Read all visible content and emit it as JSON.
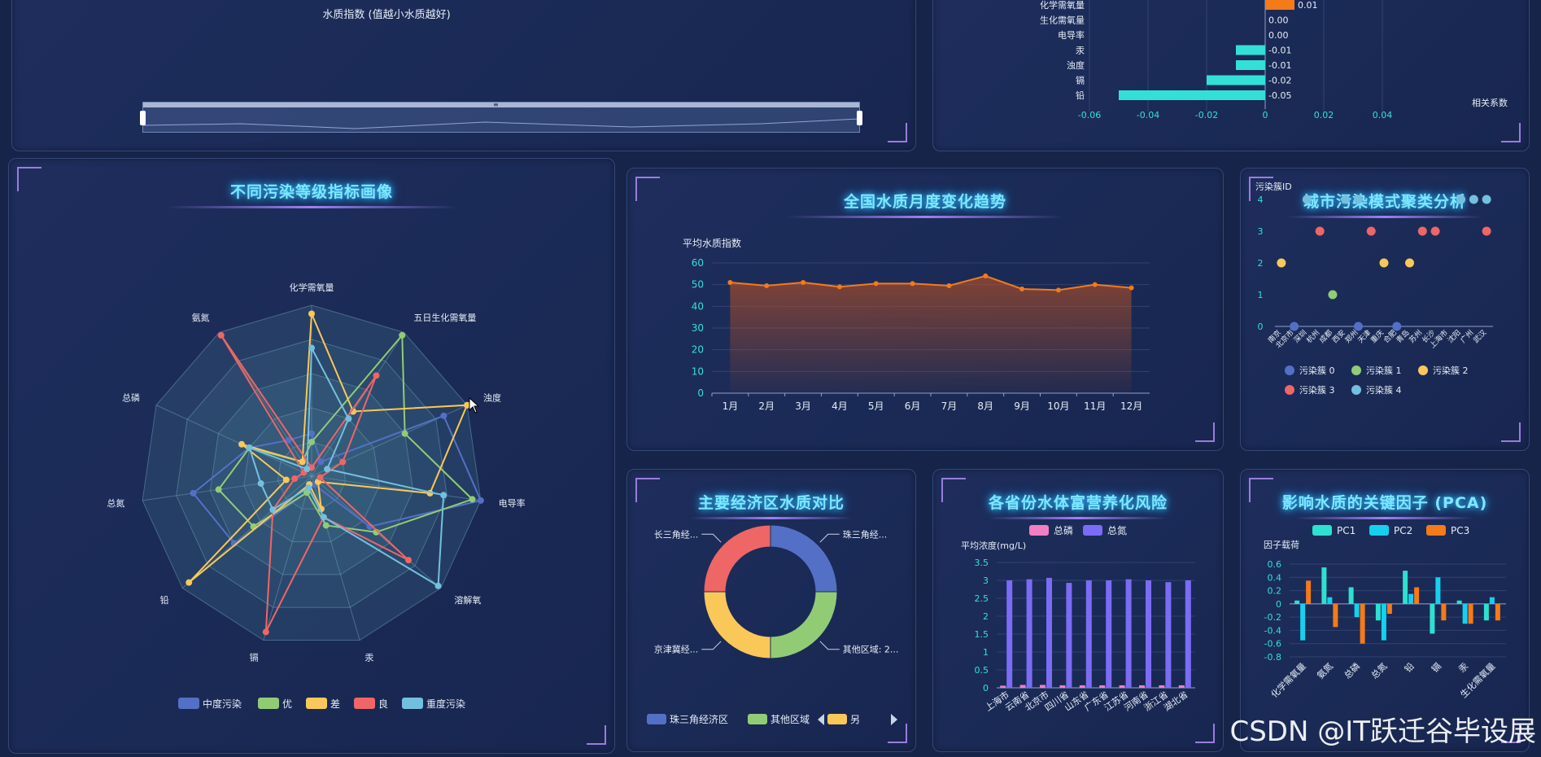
{
  "colors": {
    "accent": "#7fe6ff",
    "corner": "#9a7ddc",
    "teal": "#32e0d8",
    "orange": "#f47a1a"
  },
  "watermark": "CSDN @IT跃迁谷毕设展",
  "top_left": {
    "subtitle": "水质指数 (值越小水质越好)",
    "slider_handle_label": "≡"
  },
  "chart_data": [
    {
      "id": "correlation",
      "type": "bar",
      "orientation": "horizontal",
      "categories": [
        "化学需氧量",
        "生化需氧量",
        "电导率",
        "汞",
        "浊度",
        "镉",
        "铅"
      ],
      "values": [
        0.01,
        0.0,
        0.0,
        -0.01,
        -0.01,
        -0.02,
        -0.05
      ],
      "value_labels": [
        "0.01",
        "0.00",
        "0.00",
        "-0.01",
        "-0.01",
        "-0.02",
        "-0.05"
      ],
      "xlabel": "相关系数",
      "xlim": [
        -0.06,
        0.04
      ],
      "xticks": [
        "-0.06",
        "-0.04",
        "-0.02",
        "0",
        "0.02",
        "0.04"
      ]
    },
    {
      "id": "radar",
      "type": "radar",
      "title": "不同污染等级指标画像",
      "indicators": [
        "化学需氧量",
        "五日生化需氧量",
        "浊度",
        "电导率",
        "溶解氧",
        "汞",
        "镉",
        "铅",
        "总氮",
        "总磷",
        "氨氮"
      ],
      "series": [
        {
          "name": "中度污染",
          "color": "#5470c6",
          "values": [
            0.25,
            0.1,
            0.85,
            1.0,
            0.45,
            0.05,
            0.1,
            0.6,
            0.7,
            0.4,
            0.25
          ]
        },
        {
          "name": "优",
          "color": "#91cc75",
          "values": [
            0.2,
            0.98,
            0.6,
            0.95,
            0.5,
            0.3,
            0.1,
            0.45,
            0.55,
            0.4,
            0.1
          ]
        },
        {
          "name": "差",
          "color": "#fac858",
          "values": [
            0.95,
            0.45,
            1.0,
            0.7,
            0.05,
            0.2,
            0.05,
            0.95,
            0.15,
            0.45,
            0.1
          ]
        },
        {
          "name": "良",
          "color": "#ee6666",
          "values": [
            0.05,
            0.7,
            0.2,
            0.05,
            0.75,
            0.25,
            0.95,
            0.3,
            0.1,
            0.05,
            0.98
          ]
        },
        {
          "name": "重度污染",
          "color": "#73c0de",
          "values": [
            0.75,
            0.4,
            0.1,
            0.78,
            0.98,
            0.25,
            0.07,
            0.3,
            0.3,
            0.4,
            0.05
          ]
        }
      ]
    },
    {
      "id": "monthly",
      "type": "area",
      "title": "全国水质月度变化趋势",
      "ylabel": "平均水质指数",
      "categories": [
        "1月",
        "2月",
        "3月",
        "4月",
        "5月",
        "6月",
        "7月",
        "8月",
        "9月",
        "10月",
        "11月",
        "12月"
      ],
      "values": [
        51,
        49.5,
        51,
        49,
        50.5,
        50.5,
        49.5,
        54,
        48,
        47.5,
        50,
        48.5
      ],
      "ylim": [
        0,
        60
      ],
      "yticks": [
        "0",
        "10",
        "20",
        "30",
        "40",
        "50",
        "60"
      ]
    },
    {
      "id": "cluster",
      "type": "scatter",
      "title": "城市污染模式聚类分析",
      "ylabel": "污染簇ID",
      "yticks": [
        "0",
        "1",
        "2",
        "3",
        "4"
      ],
      "categories": [
        "南京",
        "北京市",
        "深圳",
        "杭州",
        "成都",
        "西安",
        "郑州",
        "天津",
        "重庆",
        "合肥",
        "青岛",
        "苏州",
        "长沙",
        "上海市",
        "沈阳",
        "广州",
        "武汉"
      ],
      "points": [
        {
          "x": 1,
          "y": 0,
          "c": 0
        },
        {
          "x": 2,
          "y": 4,
          "c": 4
        },
        {
          "x": 4,
          "y": 1,
          "c": 1
        },
        {
          "x": 5,
          "y": 4,
          "c": 4
        },
        {
          "x": 6,
          "y": 4,
          "c": 4
        },
        {
          "x": 3,
          "y": 3,
          "c": 3
        },
        {
          "x": 7,
          "y": 3,
          "c": 3
        },
        {
          "x": 0,
          "y": 2,
          "c": 2
        },
        {
          "x": 8,
          "y": 2,
          "c": 2
        },
        {
          "x": 10,
          "y": 2,
          "c": 2
        },
        {
          "x": 6,
          "y": 0,
          "c": 0
        },
        {
          "x": 9,
          "y": 0,
          "c": 0
        },
        {
          "x": 11,
          "y": 3,
          "c": 3
        },
        {
          "x": 12,
          "y": 3,
          "c": 3
        },
        {
          "x": 14,
          "y": 4,
          "c": 4
        },
        {
          "x": 15,
          "y": 4,
          "c": 4
        },
        {
          "x": 16,
          "y": 4,
          "c": 4
        },
        {
          "x": 16,
          "y": 3,
          "c": 3
        }
      ],
      "legend": [
        {
          "name": "污染簇 0",
          "color": "#5470c6"
        },
        {
          "name": "污染簇 1",
          "color": "#91cc75"
        },
        {
          "name": "污染簇 2",
          "color": "#fac858"
        },
        {
          "name": "污染簇 3",
          "color": "#ee6666"
        },
        {
          "name": "污染簇 4",
          "color": "#73c0de"
        }
      ]
    },
    {
      "id": "economic",
      "type": "pie",
      "title": "主要经济区水质对比",
      "slices": [
        {
          "name": "珠三角经济区",
          "label": "珠三角经...",
          "value": 25,
          "color": "#5470c6"
        },
        {
          "name": "其他区域",
          "label": "其他区域: 2...",
          "value": 25,
          "color": "#91cc75"
        },
        {
          "name": "京津冀经济区",
          "label": "京津冀经...",
          "value": 25,
          "color": "#fac858"
        },
        {
          "name": "长三角经济区",
          "label": "长三角经...",
          "value": 25,
          "color": "#ee6666"
        }
      ],
      "legend_visible": [
        "珠三角经济区",
        "其他区域",
        "另"
      ]
    },
    {
      "id": "eutrophication",
      "type": "bar",
      "title": "各省份水体富营养化风险",
      "ylabel": "平均浓度(mg/L)",
      "categories": [
        "上海市",
        "云南省",
        "北京市",
        "四川省",
        "山东省",
        "广东省",
        "江苏省",
        "河南省",
        "浙江省",
        "湖北省"
      ],
      "series": [
        {
          "name": "总磷",
          "color": "#f27ec4",
          "values": [
            0.06,
            0.08,
            0.08,
            0.07,
            0.07,
            0.07,
            0.07,
            0.07,
            0.07,
            0.07
          ]
        },
        {
          "name": "总氮",
          "color": "#7b6cf6",
          "values": [
            3.0,
            3.03,
            3.07,
            2.93,
            3.0,
            3.0,
            3.03,
            3.0,
            2.95,
            3.0
          ]
        }
      ],
      "ylim": [
        0,
        3.5
      ],
      "yticks": [
        "0",
        "0.5",
        "1",
        "1.5",
        "2",
        "2.5",
        "3",
        "3.5"
      ]
    },
    {
      "id": "pca",
      "type": "bar",
      "title": "影响水质的关键因子 (PCA)",
      "ylabel": "因子载荷",
      "categories": [
        "化学需氧量",
        "氨氮",
        "总磷",
        "总氮",
        "铅",
        "镉",
        "汞",
        "生化需氧量"
      ],
      "x_tick_labels": [
        "化学需氧量",
        "氨氮",
        "总磷",
        "总氮",
        "铅",
        "镉",
        "汞",
        "生化需氧量"
      ],
      "series": [
        {
          "name": "PC1",
          "color": "#2ee0d0",
          "values": [
            0.05,
            0.55,
            0.25,
            -0.25,
            0.5,
            -0.45,
            0.05,
            -0.25
          ]
        },
        {
          "name": "PC2",
          "color": "#16d0f0",
          "values": [
            -0.55,
            0.1,
            -0.2,
            -0.55,
            0.15,
            0.4,
            -0.3,
            0.1
          ]
        },
        {
          "name": "PC3",
          "color": "#f47a1a",
          "values": [
            0.35,
            -0.35,
            -0.6,
            -0.15,
            0.25,
            -0.25,
            -0.3,
            -0.25
          ]
        }
      ],
      "ylim": [
        -0.8,
        0.6
      ],
      "yticks": [
        "0.6",
        "0.4",
        "0.2",
        "0",
        "-0.2",
        "-0.4",
        "-0.6",
        "-0.8"
      ]
    }
  ]
}
